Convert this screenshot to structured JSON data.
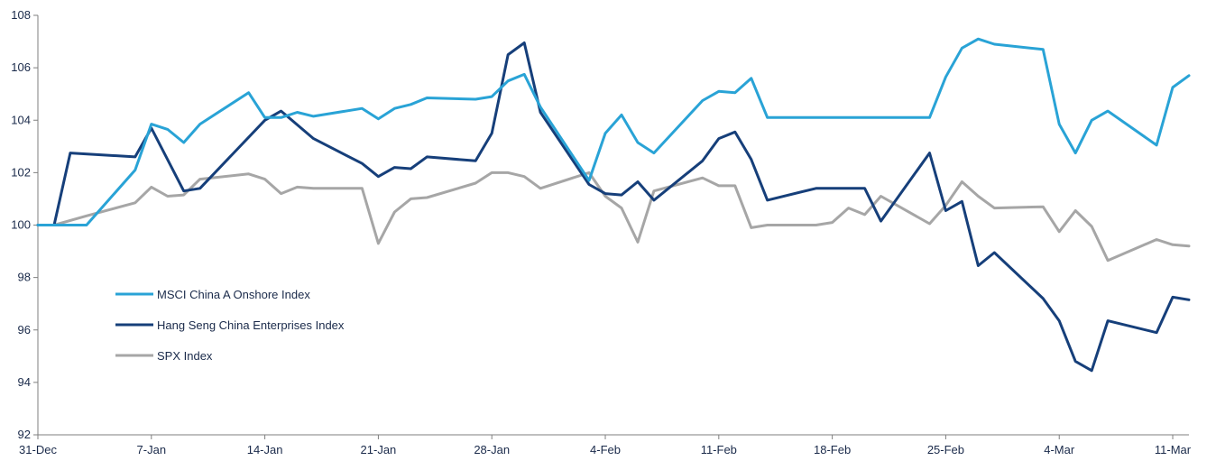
{
  "chart_data": {
    "type": "line",
    "title": "",
    "xlabel": "",
    "ylabel": "",
    "ylim": [
      92,
      108
    ],
    "yticks": [
      92,
      94,
      96,
      98,
      100,
      102,
      104,
      106,
      108
    ],
    "xlim": [
      "2020-12-31",
      "2021-03-12"
    ],
    "xticks": [
      {
        "date": "2020-12-31",
        "label": "31-Dec"
      },
      {
        "date": "2021-01-07",
        "label": "7-Jan"
      },
      {
        "date": "2021-01-14",
        "label": "14-Jan"
      },
      {
        "date": "2021-01-21",
        "label": "21-Jan"
      },
      {
        "date": "2021-01-28",
        "label": "28-Jan"
      },
      {
        "date": "2021-02-04",
        "label": "4-Feb"
      },
      {
        "date": "2021-02-11",
        "label": "11-Feb"
      },
      {
        "date": "2021-02-18",
        "label": "18-Feb"
      },
      {
        "date": "2021-02-25",
        "label": "25-Feb"
      },
      {
        "date": "2021-03-04",
        "label": "4-Mar"
      },
      {
        "date": "2021-03-11",
        "label": "11-Mar"
      }
    ],
    "grid": false,
    "legend_position": "lower-left",
    "series": [
      {
        "name": "MSCI China A Onshore Index",
        "color": "#29A3D6",
        "points": [
          [
            "2020-12-31",
            100
          ],
          [
            "2021-01-01",
            100
          ],
          [
            "2021-01-03",
            100
          ],
          [
            "2021-01-06",
            102.1
          ],
          [
            "2021-01-07",
            103.85
          ],
          [
            "2021-01-08",
            103.65
          ],
          [
            "2021-01-09",
            103.15
          ],
          [
            "2021-01-10",
            103.85
          ],
          [
            "2021-01-13",
            105.05
          ],
          [
            "2021-01-14",
            104.1
          ],
          [
            "2021-01-15",
            104.1
          ],
          [
            "2021-01-16",
            104.3
          ],
          [
            "2021-01-17",
            104.15
          ],
          [
            "2021-01-20",
            104.45
          ],
          [
            "2021-01-21",
            104.05
          ],
          [
            "2021-01-22",
            104.45
          ],
          [
            "2021-01-23",
            104.6
          ],
          [
            "2021-01-24",
            104.85
          ],
          [
            "2021-01-27",
            104.8
          ],
          [
            "2021-01-28",
            104.9
          ],
          [
            "2021-01-29",
            105.5
          ],
          [
            "2021-01-30",
            105.75
          ],
          [
            "2021-01-31",
            104.5
          ],
          [
            "2021-02-03",
            101.7
          ],
          [
            "2021-02-04",
            103.5
          ],
          [
            "2021-02-05",
            104.2
          ],
          [
            "2021-02-06",
            103.15
          ],
          [
            "2021-02-07",
            102.75
          ],
          [
            "2021-02-10",
            104.75
          ],
          [
            "2021-02-11",
            105.1
          ],
          [
            "2021-02-12",
            105.05
          ],
          [
            "2021-02-13",
            105.6
          ],
          [
            "2021-02-14",
            104.1
          ],
          [
            "2021-02-24",
            104.1
          ],
          [
            "2021-02-25",
            105.65
          ],
          [
            "2021-02-26",
            106.75
          ],
          [
            "2021-02-27",
            107.1
          ],
          [
            "2021-02-28",
            106.9
          ],
          [
            "2021-03-03",
            106.7
          ],
          [
            "2021-03-04",
            103.85
          ],
          [
            "2021-03-05",
            102.75
          ],
          [
            "2021-03-06",
            104
          ],
          [
            "2021-03-07",
            104.35
          ],
          [
            "2021-03-10",
            103.05
          ],
          [
            "2021-03-11",
            105.25
          ],
          [
            "2021-03-12",
            105.7
          ]
        ]
      },
      {
        "name": "Hang Seng China Enterprises Index",
        "color": "#163F7A",
        "points": [
          [
            "2020-12-31",
            100
          ],
          [
            "2021-01-01",
            100
          ],
          [
            "2021-01-02",
            102.75
          ],
          [
            "2021-01-06",
            102.6
          ],
          [
            "2021-01-07",
            103.7
          ],
          [
            "2021-01-09",
            101.3
          ],
          [
            "2021-01-10",
            101.4
          ],
          [
            "2021-01-14",
            104
          ],
          [
            "2021-01-15",
            104.35
          ],
          [
            "2021-01-17",
            103.3
          ],
          [
            "2021-01-20",
            102.35
          ],
          [
            "2021-01-21",
            101.85
          ],
          [
            "2021-01-22",
            102.2
          ],
          [
            "2021-01-23",
            102.15
          ],
          [
            "2021-01-24",
            102.6
          ],
          [
            "2021-01-27",
            102.45
          ],
          [
            "2021-01-28",
            103.5
          ],
          [
            "2021-01-29",
            106.5
          ],
          [
            "2021-01-30",
            106.95
          ],
          [
            "2021-01-31",
            104.3
          ],
          [
            "2021-02-03",
            101.55
          ],
          [
            "2021-02-04",
            101.2
          ],
          [
            "2021-02-05",
            101.15
          ],
          [
            "2021-02-06",
            101.65
          ],
          [
            "2021-02-07",
            100.95
          ],
          [
            "2021-02-10",
            102.45
          ],
          [
            "2021-02-11",
            103.3
          ],
          [
            "2021-02-12",
            103.55
          ],
          [
            "2021-02-13",
            102.5
          ],
          [
            "2021-02-14",
            100.95
          ],
          [
            "2021-02-17",
            101.4
          ],
          [
            "2021-02-20",
            101.4
          ],
          [
            "2021-02-21",
            100.15
          ],
          [
            "2021-02-24",
            102.75
          ],
          [
            "2021-02-25",
            100.55
          ],
          [
            "2021-02-26",
            100.9
          ],
          [
            "2021-02-27",
            98.45
          ],
          [
            "2021-02-28",
            98.95
          ],
          [
            "2021-03-03",
            97.2
          ],
          [
            "2021-03-04",
            96.35
          ],
          [
            "2021-03-05",
            94.8
          ],
          [
            "2021-03-06",
            94.45
          ],
          [
            "2021-03-07",
            96.35
          ],
          [
            "2021-03-10",
            95.9
          ],
          [
            "2021-03-11",
            97.25
          ],
          [
            "2021-03-12",
            97.15
          ]
        ]
      },
      {
        "name": "SPX Index",
        "color": "#A6A6A6",
        "points": [
          [
            "2020-12-31",
            100
          ],
          [
            "2021-01-01",
            100
          ],
          [
            "2021-01-03",
            100.35
          ],
          [
            "2021-01-06",
            100.85
          ],
          [
            "2021-01-07",
            101.45
          ],
          [
            "2021-01-08",
            101.1
          ],
          [
            "2021-01-09",
            101.15
          ],
          [
            "2021-01-10",
            101.75
          ],
          [
            "2021-01-13",
            101.95
          ],
          [
            "2021-01-14",
            101.75
          ],
          [
            "2021-01-15",
            101.2
          ],
          [
            "2021-01-16",
            101.45
          ],
          [
            "2021-01-17",
            101.4
          ],
          [
            "2021-01-20",
            101.4
          ],
          [
            "2021-01-21",
            99.3
          ],
          [
            "2021-01-22",
            100.5
          ],
          [
            "2021-01-23",
            101
          ],
          [
            "2021-01-24",
            101.05
          ],
          [
            "2021-01-27",
            101.6
          ],
          [
            "2021-01-28",
            102
          ],
          [
            "2021-01-29",
            102
          ],
          [
            "2021-01-30",
            101.85
          ],
          [
            "2021-01-31",
            101.4
          ],
          [
            "2021-02-03",
            102
          ],
          [
            "2021-02-04",
            101.1
          ],
          [
            "2021-02-05",
            100.65
          ],
          [
            "2021-02-06",
            99.35
          ],
          [
            "2021-02-07",
            101.3
          ],
          [
            "2021-02-10",
            101.8
          ],
          [
            "2021-02-11",
            101.5
          ],
          [
            "2021-02-12",
            101.5
          ],
          [
            "2021-02-13",
            99.9
          ],
          [
            "2021-02-14",
            100
          ],
          [
            "2021-02-17",
            100
          ],
          [
            "2021-02-18",
            100.1
          ],
          [
            "2021-02-19",
            100.65
          ],
          [
            "2021-02-20",
            100.4
          ],
          [
            "2021-02-21",
            101.1
          ],
          [
            "2021-02-24",
            100.05
          ],
          [
            "2021-02-25",
            100.75
          ],
          [
            "2021-02-26",
            101.65
          ],
          [
            "2021-02-27",
            101.1
          ],
          [
            "2021-02-28",
            100.65
          ],
          [
            "2021-03-03",
            100.7
          ],
          [
            "2021-03-04",
            99.75
          ],
          [
            "2021-03-05",
            100.55
          ],
          [
            "2021-03-06",
            99.95
          ],
          [
            "2021-03-07",
            98.65
          ],
          [
            "2021-03-10",
            99.45
          ],
          [
            "2021-03-11",
            99.25
          ],
          [
            "2021-03-12",
            99.2
          ]
        ]
      }
    ]
  }
}
